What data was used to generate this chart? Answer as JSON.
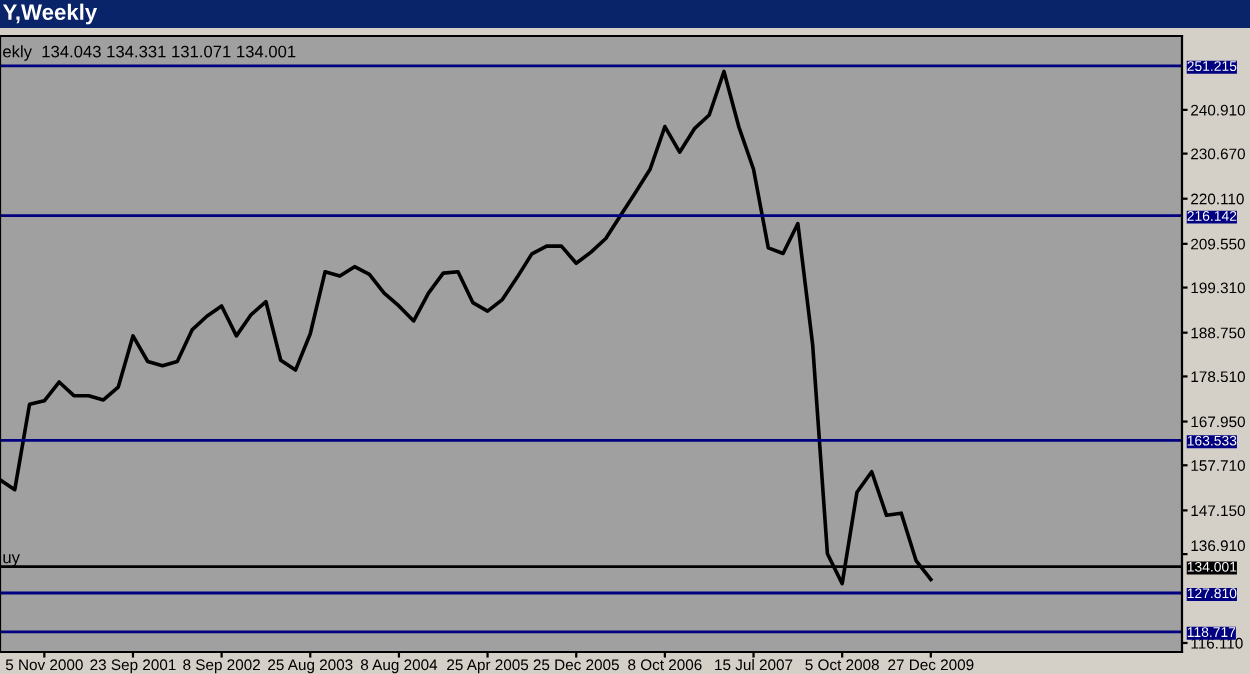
{
  "chart_data": {
    "type": "line",
    "title": "Y,Weekly",
    "subtitle": "ekly  134.043 134.331 131.071 134.001",
    "categories": [
      null,
      null,
      null,
      "5 Nov 2000",
      null,
      null,
      null,
      null,
      null,
      "23 Sep 2001",
      null,
      null,
      null,
      null,
      null,
      "8 Sep 2002",
      null,
      null,
      null,
      null,
      null,
      "25 Aug 2003",
      null,
      null,
      null,
      null,
      null,
      "8 Aug 2004",
      null,
      null,
      null,
      null,
      null,
      "25 Apr 2005",
      null,
      null,
      null,
      null,
      null,
      "25 Dec 2005",
      null,
      null,
      null,
      null,
      null,
      "8 Oct 2006",
      null,
      null,
      null,
      null,
      null,
      "15 Jul 2007",
      null,
      null,
      null,
      null,
      null,
      "5 Oct 2008",
      null,
      null,
      null,
      null,
      null,
      "27 Dec 2009",
      null,
      null,
      null,
      null,
      null,
      null,
      null,
      null,
      null,
      null,
      null,
      null,
      null,
      null,
      null,
      null,
      null
    ],
    "series": [
      {
        "color": "#000000",
        "values": [
          154.3,
          152.0,
          172.0,
          172.8,
          177.2,
          174.0,
          174.0,
          173.0,
          176.0,
          188.0,
          182.0,
          181.0,
          182.0,
          189.4,
          192.6,
          195.0,
          188.0,
          193.0,
          196.0,
          182.3,
          180.0,
          188.5,
          203.0,
          202.0,
          204.2,
          202.4,
          198.0,
          195.0,
          191.5,
          198.0,
          202.7,
          203.0,
          195.8,
          193.8,
          196.5,
          201.7,
          207.2,
          209.0,
          209.0,
          205.0,
          207.6,
          210.8,
          216.2,
          221.5,
          227.0,
          237.0,
          231.0,
          236.5,
          239.7,
          249.9,
          237.0,
          227.0,
          208.6,
          207.3,
          214.3,
          186.0,
          137.0,
          130.0,
          151.4,
          156.2,
          146.0,
          146.5,
          135.4,
          131.0,
          null,
          null,
          null,
          null,
          null,
          null,
          null,
          null,
          null,
          null,
          null,
          null,
          null,
          null,
          null,
          null,
          null
        ]
      }
    ],
    "ylim": [
      114.0,
      258.2
    ],
    "yticks": [
      {
        "value": 240.91,
        "label": "240.910"
      },
      {
        "value": 230.67,
        "label": "230.670"
      },
      {
        "value": 220.11,
        "label": "220.110"
      },
      {
        "value": 209.55,
        "label": "209.550"
      },
      {
        "value": 199.31,
        "label": "199.310"
      },
      {
        "value": 188.75,
        "label": "188.750"
      },
      {
        "value": 178.51,
        "label": "178.510"
      },
      {
        "value": 167.95,
        "label": "167.950"
      },
      {
        "value": 157.71,
        "label": "157.710"
      },
      {
        "value": 147.15,
        "label": "147.150"
      },
      {
        "value": 136.91,
        "label": "136.910"
      },
      {
        "value": 116.11,
        "label": "116.110"
      }
    ],
    "ref_lines": [
      {
        "axis": "y",
        "value": 251.215,
        "label": "251.215",
        "color": "#000080"
      },
      {
        "axis": "y",
        "value": 216.142,
        "label": "216.142",
        "color": "#000080"
      },
      {
        "axis": "y",
        "value": 163.533,
        "label": "163.533",
        "color": "#000080"
      },
      {
        "axis": "y",
        "value": 134.001,
        "label": "134.001",
        "color": "#000000"
      },
      {
        "axis": "y",
        "value": 127.81,
        "label": "127.810",
        "color": "#000080"
      },
      {
        "axis": "y",
        "value": 118.717,
        "label": "118.717",
        "color": "#000080"
      }
    ],
    "annotations": [
      {
        "text": "uy",
        "y": 134.001
      }
    ],
    "grid": false,
    "legend": false,
    "marker": "none",
    "line_style": "solid"
  }
}
